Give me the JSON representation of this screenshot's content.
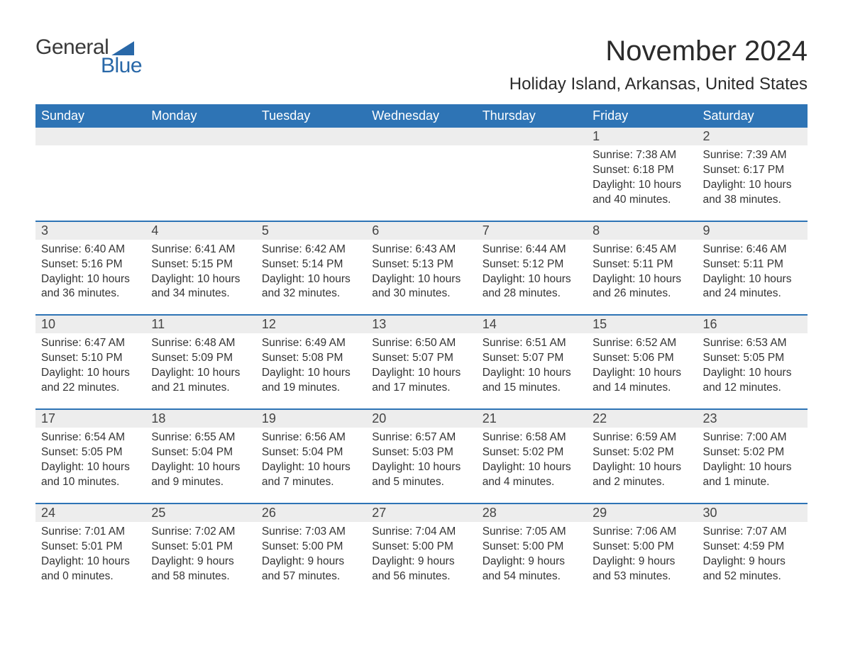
{
  "logo": {
    "word1": "General",
    "word2": "Blue"
  },
  "title": "November 2024",
  "location": "Holiday Island, Arkansas, United States",
  "colors": {
    "header_bg": "#2e74b5",
    "header_text": "#ffffff",
    "daynum_bg": "#ededed",
    "body_text": "#333333",
    "logo_blue": "#2968a8",
    "page_bg": "#ffffff",
    "week_divider": "#2e74b5"
  },
  "typography": {
    "title_fontsize": 40,
    "location_fontsize": 24,
    "weekday_fontsize": 18,
    "daynum_fontsize": 18,
    "detail_fontsize": 15.5
  },
  "weekdays": [
    "Sunday",
    "Monday",
    "Tuesday",
    "Wednesday",
    "Thursday",
    "Friday",
    "Saturday"
  ],
  "labels": {
    "sunrise": "Sunrise:",
    "sunset": "Sunset:",
    "daylight": "Daylight:"
  },
  "weeks": [
    [
      null,
      null,
      null,
      null,
      null,
      {
        "n": "1",
        "sr": "7:38 AM",
        "ss": "6:18 PM",
        "dl": "10 hours and 40 minutes."
      },
      {
        "n": "2",
        "sr": "7:39 AM",
        "ss": "6:17 PM",
        "dl": "10 hours and 38 minutes."
      }
    ],
    [
      {
        "n": "3",
        "sr": "6:40 AM",
        "ss": "5:16 PM",
        "dl": "10 hours and 36 minutes."
      },
      {
        "n": "4",
        "sr": "6:41 AM",
        "ss": "5:15 PM",
        "dl": "10 hours and 34 minutes."
      },
      {
        "n": "5",
        "sr": "6:42 AM",
        "ss": "5:14 PM",
        "dl": "10 hours and 32 minutes."
      },
      {
        "n": "6",
        "sr": "6:43 AM",
        "ss": "5:13 PM",
        "dl": "10 hours and 30 minutes."
      },
      {
        "n": "7",
        "sr": "6:44 AM",
        "ss": "5:12 PM",
        "dl": "10 hours and 28 minutes."
      },
      {
        "n": "8",
        "sr": "6:45 AM",
        "ss": "5:11 PM",
        "dl": "10 hours and 26 minutes."
      },
      {
        "n": "9",
        "sr": "6:46 AM",
        "ss": "5:11 PM",
        "dl": "10 hours and 24 minutes."
      }
    ],
    [
      {
        "n": "10",
        "sr": "6:47 AM",
        "ss": "5:10 PM",
        "dl": "10 hours and 22 minutes."
      },
      {
        "n": "11",
        "sr": "6:48 AM",
        "ss": "5:09 PM",
        "dl": "10 hours and 21 minutes."
      },
      {
        "n": "12",
        "sr": "6:49 AM",
        "ss": "5:08 PM",
        "dl": "10 hours and 19 minutes."
      },
      {
        "n": "13",
        "sr": "6:50 AM",
        "ss": "5:07 PM",
        "dl": "10 hours and 17 minutes."
      },
      {
        "n": "14",
        "sr": "6:51 AM",
        "ss": "5:07 PM",
        "dl": "10 hours and 15 minutes."
      },
      {
        "n": "15",
        "sr": "6:52 AM",
        "ss": "5:06 PM",
        "dl": "10 hours and 14 minutes."
      },
      {
        "n": "16",
        "sr": "6:53 AM",
        "ss": "5:05 PM",
        "dl": "10 hours and 12 minutes."
      }
    ],
    [
      {
        "n": "17",
        "sr": "6:54 AM",
        "ss": "5:05 PM",
        "dl": "10 hours and 10 minutes."
      },
      {
        "n": "18",
        "sr": "6:55 AM",
        "ss": "5:04 PM",
        "dl": "10 hours and 9 minutes."
      },
      {
        "n": "19",
        "sr": "6:56 AM",
        "ss": "5:04 PM",
        "dl": "10 hours and 7 minutes."
      },
      {
        "n": "20",
        "sr": "6:57 AM",
        "ss": "5:03 PM",
        "dl": "10 hours and 5 minutes."
      },
      {
        "n": "21",
        "sr": "6:58 AM",
        "ss": "5:02 PM",
        "dl": "10 hours and 4 minutes."
      },
      {
        "n": "22",
        "sr": "6:59 AM",
        "ss": "5:02 PM",
        "dl": "10 hours and 2 minutes."
      },
      {
        "n": "23",
        "sr": "7:00 AM",
        "ss": "5:02 PM",
        "dl": "10 hours and 1 minute."
      }
    ],
    [
      {
        "n": "24",
        "sr": "7:01 AM",
        "ss": "5:01 PM",
        "dl": "10 hours and 0 minutes."
      },
      {
        "n": "25",
        "sr": "7:02 AM",
        "ss": "5:01 PM",
        "dl": "9 hours and 58 minutes."
      },
      {
        "n": "26",
        "sr": "7:03 AM",
        "ss": "5:00 PM",
        "dl": "9 hours and 57 minutes."
      },
      {
        "n": "27",
        "sr": "7:04 AM",
        "ss": "5:00 PM",
        "dl": "9 hours and 56 minutes."
      },
      {
        "n": "28",
        "sr": "7:05 AM",
        "ss": "5:00 PM",
        "dl": "9 hours and 54 minutes."
      },
      {
        "n": "29",
        "sr": "7:06 AM",
        "ss": "5:00 PM",
        "dl": "9 hours and 53 minutes."
      },
      {
        "n": "30",
        "sr": "7:07 AM",
        "ss": "4:59 PM",
        "dl": "9 hours and 52 minutes."
      }
    ]
  ]
}
